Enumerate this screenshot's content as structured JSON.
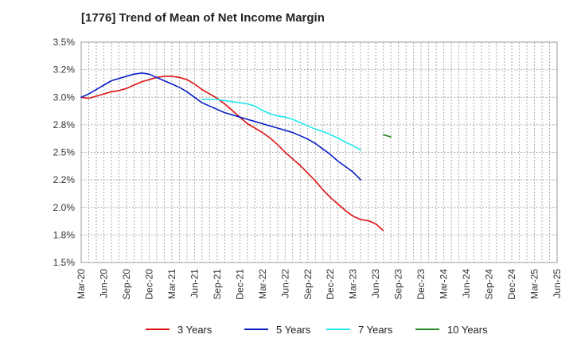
{
  "chart_data": {
    "type": "line",
    "title": "[1776]  Trend of Mean of Net Income Margin",
    "xlabel": "",
    "ylabel": "",
    "ylim": [
      1.5,
      3.5
    ],
    "x_ticks": [
      "Mar-20",
      "Jun-20",
      "Sep-20",
      "Dec-20",
      "Mar-21",
      "Jun-21",
      "Sep-21",
      "Dec-21",
      "Mar-22",
      "Jun-22",
      "Sep-22",
      "Dec-22",
      "Mar-23",
      "Jun-23",
      "Sep-23",
      "Dec-23",
      "Mar-24",
      "Jun-24",
      "Sep-24",
      "Dec-24",
      "Mar-25",
      "Jun-25"
    ],
    "y_ticks": [
      "1.5%",
      "1.8%",
      "2.0%",
      "2.2%",
      "2.5%",
      "2.8%",
      "3.0%",
      "3.2%",
      "3.5%"
    ],
    "y_tick_values": [
      1.5,
      1.75,
      2.0,
      2.25,
      2.5,
      2.75,
      3.0,
      3.25,
      3.5
    ],
    "grid": true,
    "legend_position": "bottom",
    "series": [
      {
        "name": "3 Years",
        "color": "#dd1111",
        "start_index": 0,
        "values": [
          3.0,
          2.99,
          3.01,
          3.03,
          3.05,
          3.06,
          3.08,
          3.11,
          3.14,
          3.16,
          3.18,
          3.19,
          3.19,
          3.18,
          3.16,
          3.12,
          3.07,
          3.03,
          2.99,
          2.94,
          2.88,
          2.82,
          2.76,
          2.72,
          2.68,
          2.63,
          2.57,
          2.5,
          2.44,
          2.38,
          2.31,
          2.24,
          2.16,
          2.09,
          2.03,
          1.97,
          1.92,
          1.89,
          1.88,
          1.85,
          1.79
        ]
      },
      {
        "name": "5 Years",
        "color": "#0a1ec8",
        "start_index": 0,
        "values": [
          3.0,
          3.03,
          3.07,
          3.11,
          3.15,
          3.17,
          3.19,
          3.21,
          3.22,
          3.21,
          3.18,
          3.15,
          3.12,
          3.09,
          3.05,
          3.0,
          2.95,
          2.92,
          2.89,
          2.86,
          2.84,
          2.82,
          2.8,
          2.78,
          2.76,
          2.74,
          2.72,
          2.7,
          2.68,
          2.65,
          2.62,
          2.58,
          2.53,
          2.48,
          2.42,
          2.37,
          2.32,
          2.25
        ]
      },
      {
        "name": "7 Years",
        "color": "#22e8f0",
        "start_index": 16,
        "values": [
          2.98,
          2.98,
          2.98,
          2.97,
          2.96,
          2.95,
          2.94,
          2.92,
          2.88,
          2.85,
          2.83,
          2.82,
          2.8,
          2.77,
          2.74,
          2.71,
          2.69,
          2.66,
          2.63,
          2.59,
          2.56,
          2.52
        ]
      },
      {
        "name": "10 Years",
        "color": "#228822",
        "start_index": 40,
        "values": [
          2.66,
          2.64
        ]
      }
    ]
  }
}
